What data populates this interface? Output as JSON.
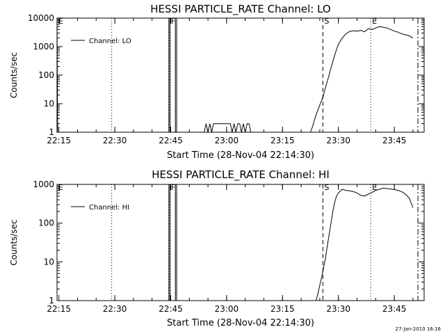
{
  "chart_data": [
    {
      "type": "line",
      "title": "HESSI PARTICLE_RATE Channel: LO",
      "xlabel": "Start Time (28-Nov-04 22:14:30)",
      "ylabel": "Counts/sec",
      "xlim": [
        "22:14:30",
        "23:53:00"
      ],
      "ylim": [
        1,
        10000
      ],
      "y_scale": "log",
      "x_ticks": [
        "22:15",
        "22:30",
        "22:45",
        "23:00",
        "23:15",
        "23:30",
        "23:45"
      ],
      "y_ticks": [
        "1",
        "10",
        "100",
        "1000",
        "10000"
      ],
      "legend": {
        "position": "top-left",
        "entries": [
          "Channel: LO"
        ]
      },
      "series": [
        {
          "name": "Channel: LO",
          "segments": [
            {
              "x": [
                "22:14:30",
                "22:14:40"
              ],
              "y": [
                8000,
                1
              ]
            },
            {
              "x": [
                "22:44:30",
                "22:44:30",
                "22:44:50",
                "22:44:50"
              ],
              "y": [
                1,
                10000,
                10000,
                1
              ]
            },
            {
              "x": [
                "22:46:15",
                "22:46:15",
                "22:46:35",
                "22:46:35"
              ],
              "y": [
                1,
                10000,
                10000,
                1
              ]
            },
            {
              "x": [
                "22:54:00",
                "22:54:30",
                "22:55:00",
                "22:55:30",
                "22:56:00",
                "22:56:30",
                "22:57:00",
                "22:59:00",
                "23:01:00",
                "23:01:30",
                "23:02:00",
                "23:02:30",
                "23:03:00",
                "23:03:30",
                "23:04:00",
                "23:04:30",
                "23:05:00",
                "23:05:30",
                "23:06:00",
                "23:06:30",
                "23:07:00"
              ],
              "y": [
                1,
                2,
                1,
                2,
                1,
                2,
                2,
                2,
                2,
                1,
                2,
                1,
                2,
                2,
                1,
                2,
                1,
                2,
                2,
                1,
                1
              ]
            },
            {
              "x": [
                "23:22:30",
                "23:23:00",
                "23:23:30",
                "23:24:00",
                "23:24:30",
                "23:25:00",
                "23:25:30",
                "23:26:00",
                "23:26:30",
                "23:27:00",
                "23:27:30",
                "23:28:00",
                "23:28:30",
                "23:29:00",
                "23:29:30",
                "23:30:00",
                "23:31:00",
                "23:32:00",
                "23:33:00",
                "23:34:00",
                "23:35:00",
                "23:36:00",
                "23:37:00",
                "23:38:00",
                "23:39:00",
                "23:40:00",
                "23:41:00",
                "23:42:00",
                "23:43:00",
                "23:44:00",
                "23:45:00",
                "23:46:00",
                "23:47:00",
                "23:48:00",
                "23:49:00",
                "23:50:00"
              ],
              "y": [
                1,
                1.5,
                2.5,
                4,
                6,
                9,
                13,
                20,
                35,
                60,
                100,
                180,
                300,
                500,
                800,
                1200,
                2000,
                2800,
                3400,
                3600,
                3500,
                3700,
                3300,
                4200,
                4000,
                4500,
                5000,
                4800,
                4500,
                4000,
                3500,
                3200,
                2800,
                2600,
                2400,
                2000
              ]
            }
          ]
        }
      ],
      "markers": [
        {
          "time": "22:14:30",
          "label": "E",
          "style": "dotted"
        },
        {
          "time": "22:14:30",
          "label": "F",
          "style": "dotted"
        },
        {
          "time": "22:29:10",
          "label": "",
          "style": "dotted"
        },
        {
          "time": "22:44:40",
          "label": "F",
          "style": "dotted"
        },
        {
          "time": "23:25:50",
          "label": "S",
          "style": "dashed"
        },
        {
          "time": "23:38:40",
          "label": "E",
          "style": "dotted"
        },
        {
          "time": "23:51:20",
          "label": "",
          "style": "dashdot"
        }
      ]
    },
    {
      "type": "line",
      "title": "HESSI PARTICLE_RATE Channel: HI",
      "xlabel": "Start Time (28-Nov-04 22:14:30)",
      "ylabel": "Counts/sec",
      "xlim": [
        "22:14:30",
        "23:53:00"
      ],
      "ylim": [
        1,
        1000
      ],
      "y_scale": "log",
      "x_ticks": [
        "22:15",
        "22:30",
        "22:45",
        "23:00",
        "23:15",
        "23:30",
        "23:45"
      ],
      "y_ticks": [
        "1",
        "10",
        "100",
        "1000"
      ],
      "legend": {
        "position": "top-left",
        "entries": [
          "Channel: HI"
        ]
      },
      "series": [
        {
          "name": "Channel: HI",
          "segments": [
            {
              "x": [
                "22:44:30",
                "22:44:30",
                "22:44:50",
                "22:44:50"
              ],
              "y": [
                1,
                1000,
                1000,
                1
              ]
            },
            {
              "x": [
                "22:46:15",
                "22:46:15",
                "22:46:35",
                "22:46:35"
              ],
              "y": [
                1,
                1000,
                1000,
                1
              ]
            },
            {
              "x": [
                "23:24:00",
                "23:24:30",
                "23:25:00",
                "23:25:30",
                "23:26:00",
                "23:26:30",
                "23:27:00",
                "23:27:30",
                "23:28:00",
                "23:28:30",
                "23:29:00",
                "23:29:30",
                "23:30:00",
                "23:31:00",
                "23:32:00",
                "23:33:00",
                "23:34:00",
                "23:35:00",
                "23:36:00",
                "23:37:00",
                "23:38:00",
                "23:39:00",
                "23:40:00",
                "23:41:00",
                "23:42:00",
                "23:43:00",
                "23:44:00",
                "23:45:00",
                "23:46:00",
                "23:47:00",
                "23:48:00",
                "23:49:00",
                "23:50:00"
              ],
              "y": [
                1,
                1.5,
                2.5,
                4,
                7,
                12,
                25,
                50,
                100,
                200,
                350,
                500,
                600,
                750,
                700,
                680,
                650,
                600,
                520,
                500,
                560,
                620,
                700,
                750,
                800,
                780,
                760,
                740,
                700,
                650,
                560,
                440,
                250
              ]
            }
          ]
        }
      ],
      "markers": [
        {
          "time": "22:14:30",
          "label": "E",
          "style": "dotted"
        },
        {
          "time": "22:29:10",
          "label": "",
          "style": "dotted"
        },
        {
          "time": "22:44:40",
          "label": "F",
          "style": "dotted"
        },
        {
          "time": "23:25:50",
          "label": "S",
          "style": "dashed"
        },
        {
          "time": "23:38:40",
          "label": "E",
          "style": "dotted"
        },
        {
          "time": "23:51:20",
          "label": "",
          "style": "dashdot"
        }
      ]
    }
  ],
  "footer": {
    "timestamp": "27-Jan-2010 16:16"
  }
}
